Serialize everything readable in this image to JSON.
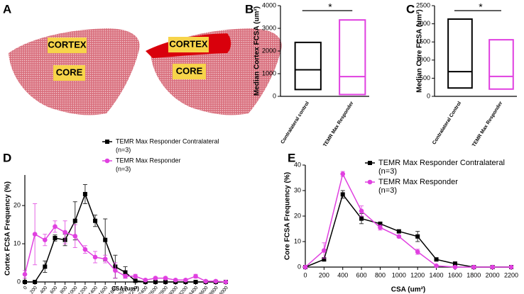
{
  "panel_a": {
    "letter": "A",
    "labels": [
      "CORTEX",
      "CORE",
      "CORTEX",
      "CORE"
    ]
  },
  "chart_data": [
    {
      "type": "box",
      "letter": "B",
      "y_label": "Median Cortex FCSA (um²)",
      "categories": [
        "Contralateral control",
        "TEMR Max Responder"
      ],
      "boxes": [
        {
          "low": 300,
          "median": 1170,
          "high": 2380,
          "color": "#000000"
        },
        {
          "low": 80,
          "median": 870,
          "high": 3370,
          "color": "#e040e0"
        }
      ],
      "significance": "*",
      "ylim": [
        0,
        4000
      ],
      "yticks": [
        0,
        1000,
        2000,
        3000,
        4000
      ]
    },
    {
      "type": "box",
      "letter": "C",
      "y_label": "Median Core FCSA (um²)",
      "categories": [
        "Contralateral Control",
        "TEMR Max Responder"
      ],
      "boxes": [
        {
          "low": 230,
          "median": 680,
          "high": 2130,
          "color": "#000000"
        },
        {
          "low": 200,
          "median": 550,
          "high": 1560,
          "color": "#e040e0"
        }
      ],
      "significance": "*",
      "ylim": [
        0,
        2500
      ],
      "yticks": [
        0,
        500,
        1000,
        1500,
        2000,
        2500
      ]
    },
    {
      "type": "line",
      "letter": "D",
      "x_label": "CSA (um²)",
      "y_label": "Cortex FCSA Frequency (%)",
      "x": [
        0,
        200,
        400,
        600,
        800,
        1000,
        1200,
        1400,
        1600,
        1800,
        2000,
        2200,
        2400,
        2600,
        2800,
        3000,
        3200,
        3400,
        3600,
        3800,
        4000
      ],
      "series": [
        {
          "name": "TEMR Max Responder Contralateral",
          "note": "(n=3)",
          "color": "#000000",
          "marker": "square",
          "values": [
            0,
            0,
            4,
            11.5,
            11,
            16,
            23,
            16,
            11,
            4,
            2.5,
            0.3,
            0,
            0,
            0,
            0,
            0,
            0,
            0,
            0,
            0
          ],
          "errors": [
            0,
            0,
            1.5,
            0.8,
            1.5,
            5,
            2.5,
            1.5,
            5.5,
            3,
            1.5,
            0.3,
            0,
            0,
            0,
            0,
            0,
            0,
            0,
            0,
            0
          ]
        },
        {
          "name": "TEMR Max Responder",
          "note": "(n=3)",
          "color": "#e040e0",
          "marker": "circle",
          "values": [
            2,
            12.5,
            11,
            14.5,
            13,
            12,
            8.5,
            6.5,
            6,
            3,
            1.5,
            1.5,
            0.5,
            1,
            1,
            0.5,
            0.5,
            1.5,
            0.2,
            0.2,
            0
          ],
          "errors": [
            1,
            8,
            1.5,
            1.5,
            3,
            3,
            1,
            1.5,
            1,
            2,
            0.5,
            0.5,
            0.3,
            0.3,
            0.3,
            0.3,
            0.3,
            0.5,
            0.2,
            0.2,
            0
          ]
        }
      ],
      "xlim": [
        0,
        4000
      ],
      "xticks": [
        0,
        200,
        400,
        600,
        800,
        1000,
        1200,
        1400,
        1600,
        1800,
        2000,
        2200,
        2400,
        2600,
        2800,
        3000,
        3200,
        3400,
        3600,
        3800,
        4000
      ],
      "ylim": [
        0,
        28
      ],
      "yticks": [
        0,
        10,
        20
      ]
    },
    {
      "type": "line",
      "letter": "E",
      "x_label": "CSA (um²)",
      "y_label": "Core FCSA Frequency (%)",
      "x": [
        0,
        200,
        400,
        600,
        800,
        1000,
        1200,
        1400,
        1600,
        1800,
        2000,
        2200
      ],
      "series": [
        {
          "name": "TEMR Max Responder Contralateral",
          "note": "(n=3)",
          "color": "#000000",
          "marker": "square",
          "values": [
            0,
            3,
            28.5,
            19,
            17,
            14,
            12,
            3,
            1.3,
            0,
            0,
            0
          ],
          "errors": [
            0,
            0.5,
            1.5,
            2,
            0.5,
            0.5,
            2,
            0.3,
            0.8,
            0,
            0,
            0
          ]
        },
        {
          "name": "TEMR Max Responder",
          "note": "(n=3)",
          "color": "#e040e0",
          "marker": "circle",
          "values": [
            0,
            6.5,
            36.5,
            22,
            15.5,
            12,
            6,
            0.5,
            0,
            0,
            0,
            0
          ],
          "errors": [
            0,
            3,
            1,
            2,
            1,
            0.5,
            1,
            0.3,
            0,
            0,
            0,
            0
          ]
        }
      ],
      "xlim": [
        0,
        2200
      ],
      "xticks": [
        0,
        200,
        400,
        600,
        800,
        1000,
        1200,
        1400,
        1600,
        1800,
        2000,
        2200
      ],
      "ylim": [
        0,
        40
      ],
      "yticks": [
        0,
        10,
        20,
        30,
        40
      ]
    }
  ]
}
